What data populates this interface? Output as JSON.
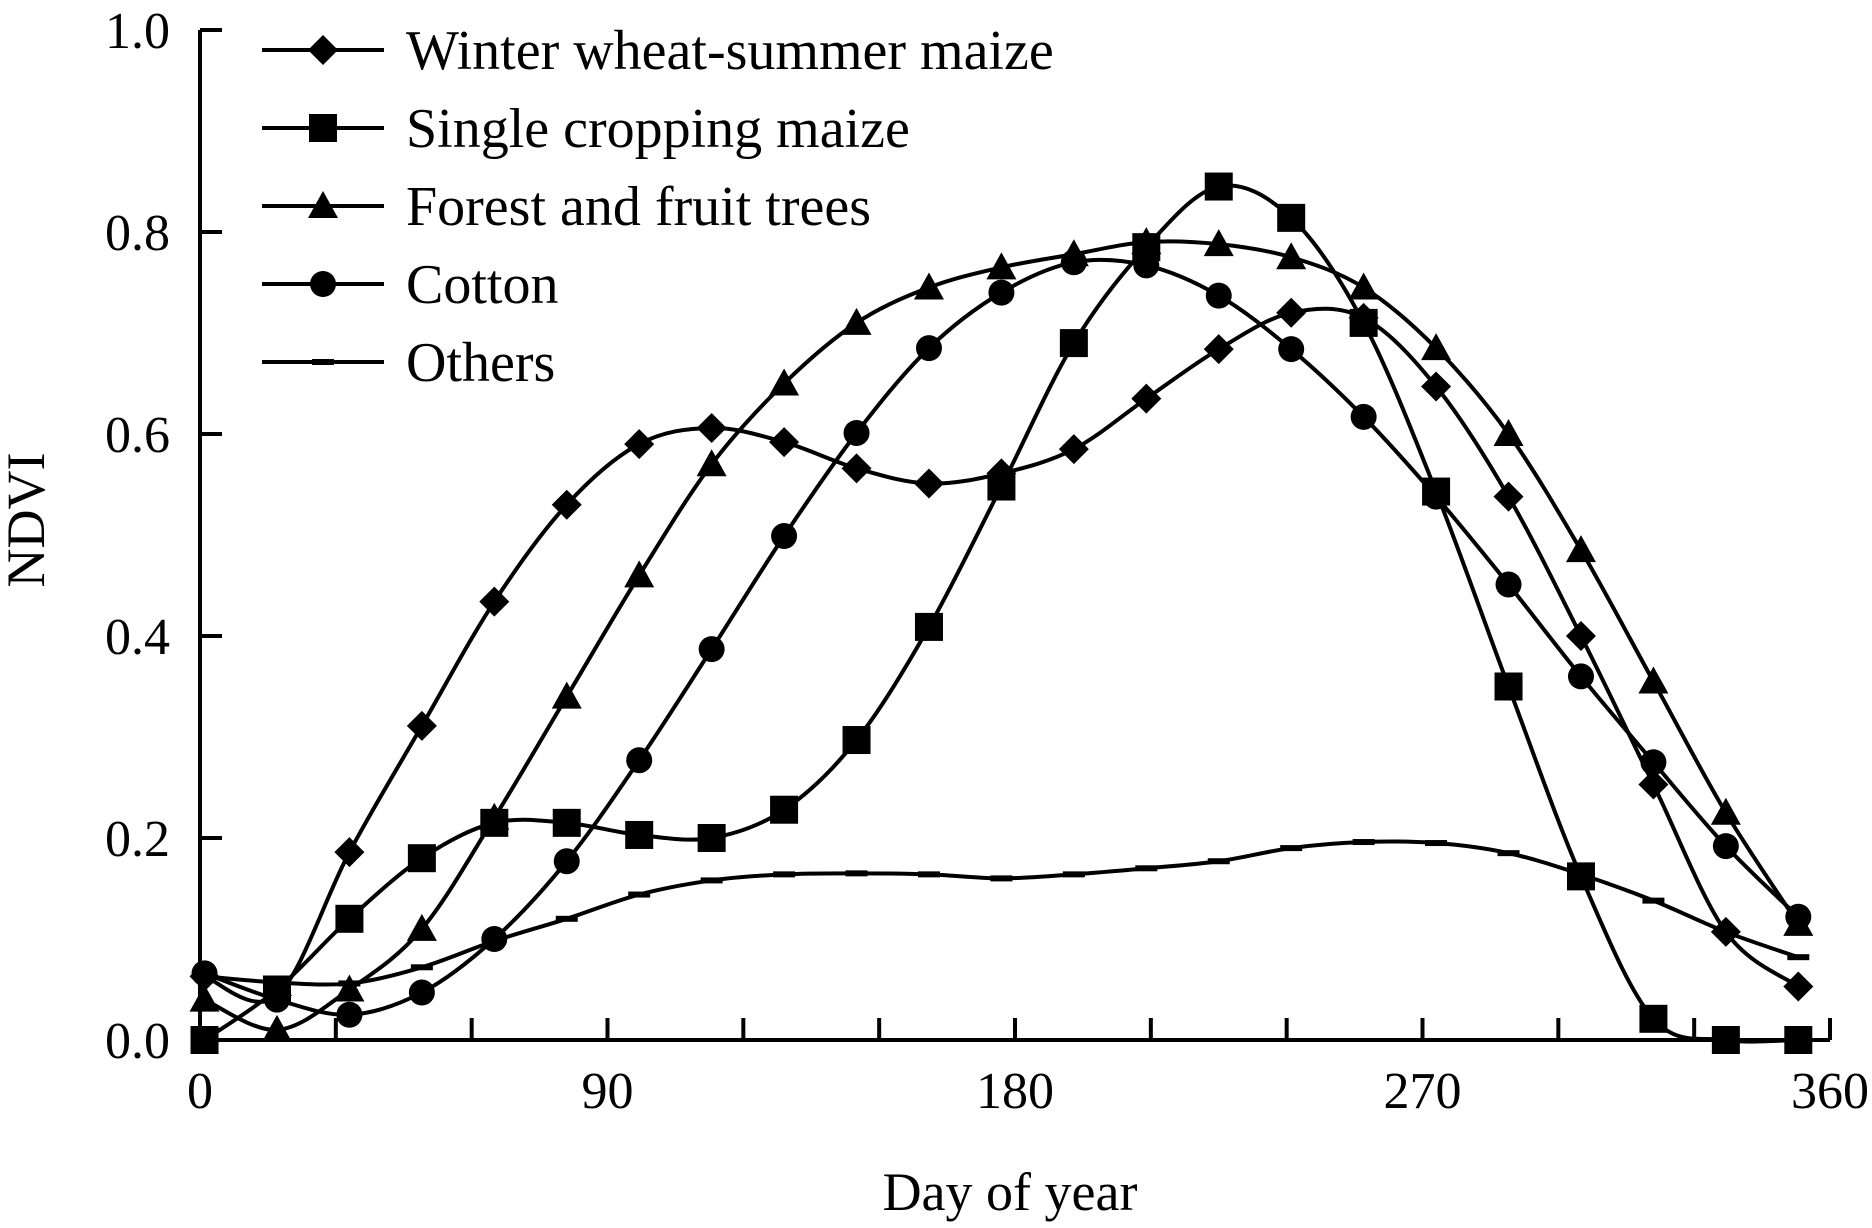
{
  "chart_data": {
    "type": "line",
    "title": "",
    "xlabel": "Day of year",
    "ylabel": "NDVI",
    "xlim": [
      0,
      360
    ],
    "ylim": [
      0,
      1
    ],
    "x_ticks": [
      0,
      90,
      180,
      270,
      360
    ],
    "x_tick_labels": [
      "0",
      "90",
      "180",
      "270",
      "360"
    ],
    "y_ticks": [
      0,
      0.2,
      0.4,
      0.6,
      0.8,
      1.0
    ],
    "y_tick_labels": [
      "0.0",
      "0.2",
      "0.4",
      "0.6",
      "0.8",
      "1.0"
    ],
    "grid": false,
    "legend_position": "top-left",
    "x": [
      1,
      17,
      33,
      49,
      65,
      81,
      97,
      113,
      129,
      145,
      161,
      177,
      193,
      209,
      225,
      241,
      257,
      273,
      289,
      305,
      321,
      337,
      353
    ],
    "series": [
      {
        "name": "Winter wheat-summer maize",
        "marker": "diamond",
        "color": "#000000",
        "values": [
          0.063,
          0.044,
          0.186,
          0.311,
          0.434,
          0.53,
          0.59,
          0.606,
          0.592,
          0.566,
          0.551,
          0.561,
          0.585,
          0.635,
          0.684,
          0.72,
          0.715,
          0.647,
          0.538,
          0.4,
          0.253,
          0.107,
          0.053
        ]
      },
      {
        "name": "Single cropping maize",
        "marker": "square",
        "color": "#000000",
        "values": [
          0,
          0.05,
          0.12,
          0.18,
          0.215,
          0.215,
          0.203,
          0.2,
          0.228,
          0.297,
          0.409,
          0.548,
          0.69,
          0.785,
          0.845,
          0.814,
          0.71,
          0.543,
          0.35,
          0.162,
          0.021,
          0,
          0
        ]
      },
      {
        "name": "Forest and fruit trees",
        "marker": "triangle",
        "color": "#000000",
        "values": [
          0.04,
          0.01,
          0.05,
          0.11,
          0.22,
          0.34,
          0.46,
          0.57,
          0.65,
          0.71,
          0.745,
          0.765,
          0.778,
          0.79,
          0.788,
          0.775,
          0.745,
          0.685,
          0.6,
          0.485,
          0.355,
          0.225,
          0.115
        ]
      },
      {
        "name": "Cotton",
        "marker": "circle",
        "color": "#000000",
        "values": [
          0.066,
          0.04,
          0.025,
          0.047,
          0.1,
          0.177,
          0.277,
          0.387,
          0.499,
          0.601,
          0.685,
          0.74,
          0.77,
          0.767,
          0.737,
          0.684,
          0.617,
          0.538,
          0.451,
          0.36,
          0.275,
          0.192,
          0.122
        ]
      },
      {
        "name": "Others",
        "marker": "dash",
        "color": "#000000",
        "values": [
          0.063,
          0.057,
          0.056,
          0.072,
          0.098,
          0.12,
          0.144,
          0.158,
          0.164,
          0.165,
          0.164,
          0.16,
          0.164,
          0.17,
          0.177,
          0.19,
          0.196,
          0.195,
          0.185,
          0.164,
          0.138,
          0.107,
          0.082
        ]
      }
    ]
  }
}
